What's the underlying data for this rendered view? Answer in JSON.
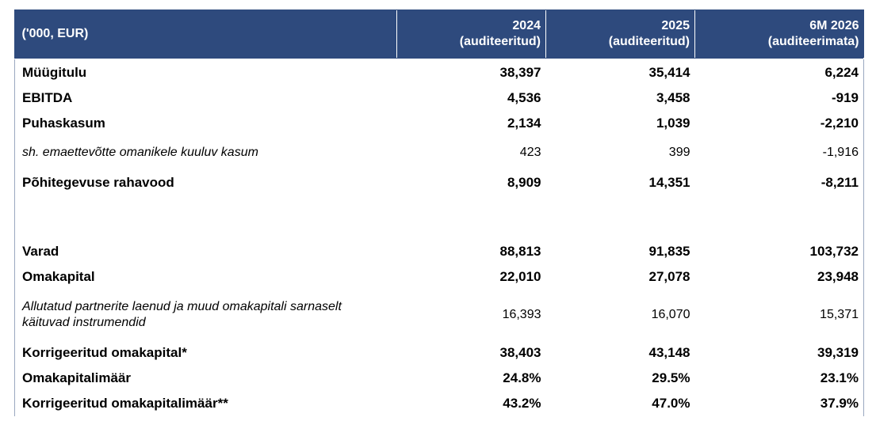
{
  "header": {
    "label": "('000, EUR)",
    "columns": [
      {
        "year": "2024",
        "note": "(auditeeritud)"
      },
      {
        "year": "2025",
        "note": "(auditeeritud)"
      },
      {
        "year": "6M 2026",
        "note": "(auditeerimata)"
      }
    ]
  },
  "rows": [
    {
      "label": "Müügitulu",
      "values": [
        "38,397",
        "35,414",
        "6,224"
      ]
    },
    {
      "label": "EBITDA",
      "values": [
        "4,536",
        "3,458",
        "-919"
      ]
    },
    {
      "label": "Puhaskasum",
      "values": [
        "2,134",
        "1,039",
        "-2,210"
      ]
    },
    {
      "label": "sh. emaettevõtte omanikele kuuluv kasum",
      "values": [
        "423",
        "399",
        "-1,916"
      ]
    },
    {
      "label": "Põhitegevuse rahavood",
      "values": [
        "8,909",
        "14,351",
        "-8,211"
      ]
    },
    {
      "label": "Varad",
      "values": [
        "88,813",
        "91,835",
        "103,732"
      ]
    },
    {
      "label": "Omakapital",
      "values": [
        "22,010",
        "27,078",
        "23,948"
      ]
    },
    {
      "label": "Allutatud partnerite laenud ja muud omakapitali sarnaselt käituvad instrumendid",
      "values": [
        "16,393",
        "16,070",
        "15,371"
      ]
    },
    {
      "label": "Korrigeeritud omakapital*",
      "values": [
        "38,403",
        "43,148",
        "39,319"
      ]
    },
    {
      "label": "Omakapitalimäär",
      "values": [
        "24.8%",
        "29.5%",
        "23.1%"
      ]
    },
    {
      "label": "Korrigeeritud omakapitalimäär**",
      "values": [
        "43.2%",
        "47.0%",
        "37.9%"
      ]
    }
  ]
}
